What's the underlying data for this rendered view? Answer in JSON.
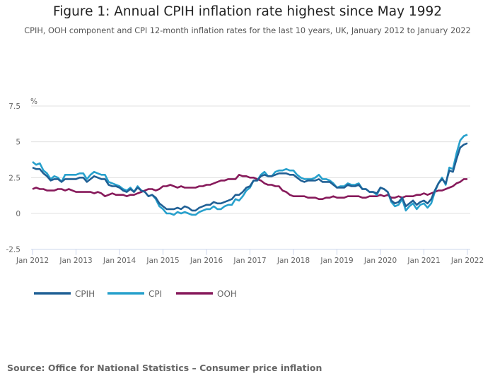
{
  "chart_data": {
    "type": "line",
    "title": "Figure 1: Annual CPIH inflation rate highest since May 1992",
    "subtitle": "CPIH, OOH component and CPI 12-month inflation rates for the last 10 years, UK, January 2012 to January 2022",
    "ylabel": "%",
    "xlabel": "",
    "ylim": [
      -2.5,
      7.5
    ],
    "yticks": [
      "-2.5",
      "0",
      "2.5",
      "5",
      "7.5"
    ],
    "ytick_values": [
      -2.5,
      0,
      2.5,
      5,
      7.5
    ],
    "xticks": [
      "Jan 2012",
      "Jan 2013",
      "Jan 2014",
      "Jan 2015",
      "Jan 2016",
      "Jan 2017",
      "Jan 2018",
      "Jan 2019",
      "Jan 2020",
      "Jan 2021",
      "Jan 2022"
    ],
    "x_range": [
      "Jan 2012",
      "Jan 2022"
    ],
    "x_frequency": "monthly",
    "grid": true,
    "legend_placement": "bottom-left",
    "series": [
      {
        "name": "CPIH",
        "color": "#206095",
        "values": [
          3.2,
          3.1,
          3.1,
          2.8,
          2.6,
          2.3,
          2.4,
          2.4,
          2.2,
          2.4,
          2.4,
          2.4,
          2.4,
          2.5,
          2.5,
          2.2,
          2.4,
          2.6,
          2.5,
          2.4,
          2.4,
          2.0,
          1.9,
          1.9,
          1.8,
          1.6,
          1.5,
          1.7,
          1.5,
          1.8,
          1.6,
          1.5,
          1.2,
          1.3,
          1.1,
          0.7,
          0.5,
          0.3,
          0.3,
          0.3,
          0.4,
          0.3,
          0.5,
          0.4,
          0.2,
          0.2,
          0.4,
          0.5,
          0.6,
          0.6,
          0.8,
          0.7,
          0.7,
          0.8,
          0.9,
          1.0,
          1.3,
          1.3,
          1.5,
          1.8,
          1.9,
          2.3,
          2.3,
          2.6,
          2.7,
          2.6,
          2.6,
          2.7,
          2.8,
          2.8,
          2.8,
          2.7,
          2.7,
          2.5,
          2.3,
          2.2,
          2.3,
          2.3,
          2.3,
          2.4,
          2.2,
          2.2,
          2.2,
          2.0,
          1.8,
          1.8,
          1.8,
          2.0,
          1.9,
          1.9,
          2.0,
          1.7,
          1.7,
          1.5,
          1.5,
          1.4,
          1.8,
          1.7,
          1.5,
          0.9,
          0.7,
          0.8,
          1.1,
          0.5,
          0.7,
          0.9,
          0.6,
          0.8,
          0.9,
          0.7,
          1.0,
          1.6,
          2.1,
          2.4,
          2.1,
          3.0,
          2.9,
          3.8,
          4.6,
          4.8,
          4.9
        ]
      },
      {
        "name": "CPI",
        "color": "#27a0cc",
        "values": [
          3.6,
          3.4,
          3.5,
          3.0,
          2.8,
          2.4,
          2.6,
          2.5,
          2.2,
          2.7,
          2.7,
          2.7,
          2.7,
          2.8,
          2.8,
          2.4,
          2.7,
          2.9,
          2.8,
          2.7,
          2.7,
          2.2,
          2.1,
          2.0,
          1.9,
          1.7,
          1.6,
          1.8,
          1.5,
          1.9,
          1.6,
          1.5,
          1.2,
          1.3,
          1.0,
          0.5,
          0.3,
          0.0,
          0.0,
          -0.1,
          0.1,
          0.0,
          0.1,
          0.0,
          -0.1,
          -0.1,
          0.1,
          0.2,
          0.3,
          0.3,
          0.5,
          0.3,
          0.3,
          0.5,
          0.6,
          0.6,
          1.0,
          0.9,
          1.2,
          1.6,
          1.8,
          2.3,
          2.3,
          2.7,
          2.9,
          2.6,
          2.6,
          2.9,
          3.0,
          3.0,
          3.1,
          3.0,
          3.0,
          2.7,
          2.5,
          2.4,
          2.4,
          2.4,
          2.5,
          2.7,
          2.4,
          2.4,
          2.3,
          2.1,
          1.8,
          1.9,
          1.9,
          2.1,
          2.0,
          2.0,
          2.1,
          1.7,
          1.7,
          1.5,
          1.5,
          1.3,
          1.8,
          1.7,
          1.5,
          0.8,
          0.5,
          0.6,
          1.0,
          0.2,
          0.5,
          0.7,
          0.3,
          0.6,
          0.7,
          0.4,
          0.7,
          1.5,
          2.1,
          2.5,
          2.0,
          3.2,
          3.1,
          4.2,
          5.1,
          5.4,
          5.5
        ]
      },
      {
        "name": "OOH",
        "color": "#871a5b",
        "values": [
          1.7,
          1.8,
          1.7,
          1.7,
          1.6,
          1.6,
          1.6,
          1.7,
          1.7,
          1.6,
          1.7,
          1.6,
          1.5,
          1.5,
          1.5,
          1.5,
          1.5,
          1.4,
          1.5,
          1.4,
          1.2,
          1.3,
          1.4,
          1.3,
          1.3,
          1.3,
          1.2,
          1.3,
          1.3,
          1.4,
          1.5,
          1.6,
          1.7,
          1.7,
          1.6,
          1.7,
          1.9,
          1.9,
          2.0,
          1.9,
          1.8,
          1.9,
          1.8,
          1.8,
          1.8,
          1.8,
          1.9,
          1.9,
          2.0,
          2.0,
          2.1,
          2.2,
          2.3,
          2.3,
          2.4,
          2.4,
          2.4,
          2.7,
          2.6,
          2.6,
          2.5,
          2.5,
          2.4,
          2.3,
          2.1,
          2.0,
          2.0,
          1.9,
          1.9,
          1.6,
          1.5,
          1.3,
          1.2,
          1.2,
          1.2,
          1.2,
          1.1,
          1.1,
          1.1,
          1.0,
          1.0,
          1.1,
          1.1,
          1.2,
          1.1,
          1.1,
          1.1,
          1.2,
          1.2,
          1.2,
          1.2,
          1.1,
          1.1,
          1.2,
          1.2,
          1.2,
          1.3,
          1.2,
          1.3,
          1.1,
          1.1,
          1.2,
          1.1,
          1.2,
          1.2,
          1.2,
          1.3,
          1.3,
          1.4,
          1.3,
          1.4,
          1.5,
          1.6,
          1.6,
          1.7,
          1.8,
          1.9,
          2.1,
          2.2,
          2.4,
          2.4
        ]
      }
    ]
  },
  "source": "Source: Office for National Statistics – Consumer price inflation"
}
